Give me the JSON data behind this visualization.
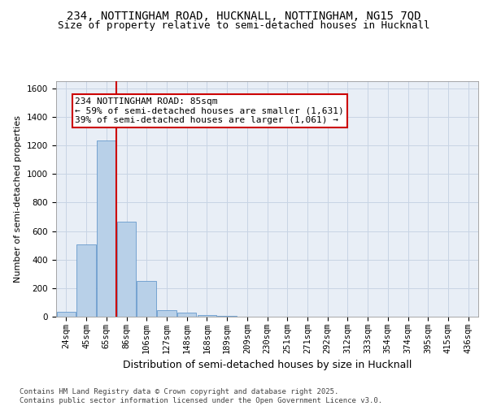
{
  "title_line1": "234, NOTTINGHAM ROAD, HUCKNALL, NOTTINGHAM, NG15 7QD",
  "title_line2": "Size of property relative to semi-detached houses in Hucknall",
  "xlabel": "Distribution of semi-detached houses by size in Hucknall",
  "ylabel": "Number of semi-detached properties",
  "categories": [
    "24sqm",
    "45sqm",
    "65sqm",
    "86sqm",
    "106sqm",
    "127sqm",
    "148sqm",
    "168sqm",
    "189sqm",
    "209sqm",
    "230sqm",
    "251sqm",
    "271sqm",
    "292sqm",
    "312sqm",
    "333sqm",
    "354sqm",
    "374sqm",
    "395sqm",
    "415sqm",
    "436sqm"
  ],
  "values": [
    32,
    508,
    1232,
    663,
    252,
    45,
    28,
    14,
    5,
    0,
    0,
    0,
    0,
    0,
    0,
    0,
    0,
    0,
    0,
    0,
    0
  ],
  "bar_color": "#b8d0e8",
  "bar_edge_color": "#6699cc",
  "vline_color": "#cc0000",
  "annotation_text": "234 NOTTINGHAM ROAD: 85sqm\n← 59% of semi-detached houses are smaller (1,631)\n39% of semi-detached houses are larger (1,061) →",
  "annotation_box_facecolor": "#ffffff",
  "annotation_box_edgecolor": "#cc0000",
  "ylim": [
    0,
    1650
  ],
  "yticks": [
    0,
    200,
    400,
    600,
    800,
    1000,
    1200,
    1400,
    1600
  ],
  "grid_color": "#c8d4e4",
  "background_color": "#e8eef6",
  "footer_text": "Contains HM Land Registry data © Crown copyright and database right 2025.\nContains public sector information licensed under the Open Government Licence v3.0.",
  "title_fontsize": 10,
  "subtitle_fontsize": 9,
  "ylabel_fontsize": 8,
  "xlabel_fontsize": 9,
  "tick_fontsize": 7.5,
  "annotation_fontsize": 8,
  "footer_fontsize": 6.5
}
